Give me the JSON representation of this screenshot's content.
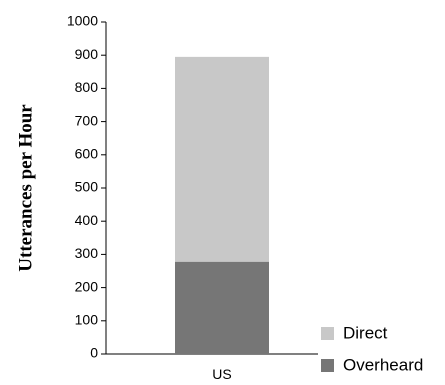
{
  "chart_data": {
    "type": "bar",
    "stacked": true,
    "categories": [
      "US"
    ],
    "series": [
      {
        "name": "Overheard",
        "values": [
          278
        ],
        "color": "#767676"
      },
      {
        "name": "Direct",
        "values": [
          617
        ],
        "color": "#c8c8c8"
      }
    ],
    "ylabel": "Utterances per Hour",
    "ylim": [
      0,
      1000
    ],
    "yticks": [
      0,
      100,
      200,
      300,
      400,
      500,
      600,
      700,
      800,
      900,
      1000
    ],
    "grid": false,
    "legend_position": "bottom-right",
    "legend_order": [
      "Direct",
      "Overheard"
    ]
  }
}
